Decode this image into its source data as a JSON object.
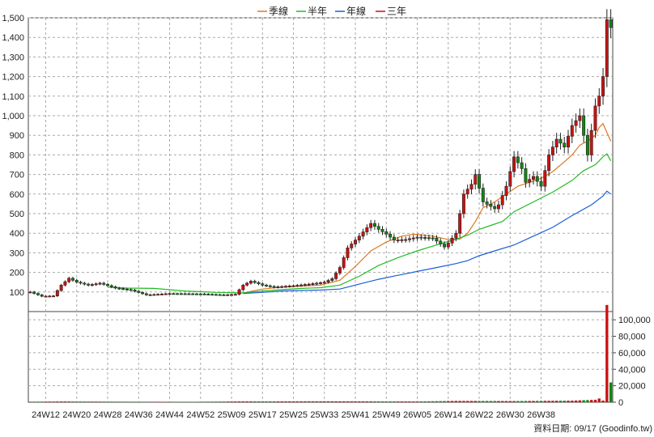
{
  "chart_data": {
    "type": "candlestick",
    "legend": {
      "position": "top-center",
      "items": [
        {
          "label": "季線",
          "color": "#e07820"
        },
        {
          "label": "半年",
          "color": "#22bb22"
        },
        {
          "label": "年線",
          "color": "#1a5fd6"
        },
        {
          "label": "三年",
          "color": "#cc1111"
        }
      ]
    },
    "price_axis": {
      "ylim": [
        0,
        1500
      ],
      "ticks": [
        100,
        200,
        300,
        400,
        500,
        600,
        700,
        800,
        900,
        1000,
        1100,
        1200,
        1300,
        1400,
        1500
      ],
      "tick_labels": [
        "100",
        "200",
        "300",
        "400",
        "500",
        "600",
        "700",
        "800",
        "900",
        "1,000",
        "1,100",
        "1,200",
        "1,300",
        "1,400",
        "1,500"
      ],
      "grid": true
    },
    "volume_axis": {
      "ylim": [
        0,
        110000
      ],
      "ticks": [
        0,
        20000,
        40000,
        60000,
        80000,
        100000
      ],
      "tick_labels": [
        "0",
        "20,000",
        "40,000",
        "60,000",
        "80,000",
        "100,000"
      ],
      "grid": true
    },
    "x_labels": [
      "24W12",
      "24W20",
      "24W28",
      "24W36",
      "24W44",
      "24W52",
      "25W09",
      "25W17",
      "25W25",
      "25W33",
      "25W41",
      "25W49",
      "26W05",
      "26W14",
      "26W22",
      "26W30",
      "26W38"
    ],
    "x_label_every": 8,
    "price_anchors": [
      [
        0,
        100
      ],
      [
        3,
        78
      ],
      [
        6,
        80
      ],
      [
        8,
        135
      ],
      [
        10,
        170
      ],
      [
        12,
        150
      ],
      [
        15,
        135
      ],
      [
        18,
        145
      ],
      [
        22,
        120
      ],
      [
        26,
        110
      ],
      [
        30,
        85
      ],
      [
        36,
        92
      ],
      [
        44,
        90
      ],
      [
        50,
        85
      ],
      [
        53,
        88
      ],
      [
        55,
        135
      ],
      [
        57,
        155
      ],
      [
        60,
        135
      ],
      [
        63,
        125
      ],
      [
        68,
        132
      ],
      [
        72,
        140
      ],
      [
        76,
        150
      ],
      [
        78,
        168
      ],
      [
        80,
        225
      ],
      [
        82,
        325
      ],
      [
        85,
        385
      ],
      [
        88,
        450
      ],
      [
        90,
        420
      ],
      [
        92,
        395
      ],
      [
        94,
        365
      ],
      [
        97,
        368
      ],
      [
        100,
        380
      ],
      [
        104,
        375
      ],
      [
        107,
        330
      ],
      [
        108,
        350
      ],
      [
        110,
        400
      ],
      [
        112,
        600
      ],
      [
        114,
        650
      ],
      [
        115,
        700
      ],
      [
        117,
        560
      ],
      [
        120,
        525
      ],
      [
        121,
        545
      ],
      [
        123,
        640
      ],
      [
        125,
        790
      ],
      [
        127,
        730
      ],
      [
        128,
        660
      ],
      [
        130,
        690
      ],
      [
        132,
        640
      ],
      [
        134,
        800
      ],
      [
        136,
        880
      ],
      [
        138,
        840
      ],
      [
        140,
        950
      ],
      [
        142,
        1000
      ],
      [
        144,
        800
      ],
      [
        146,
        1050
      ],
      [
        147,
        1100
      ],
      [
        148,
        1200
      ],
      [
        149,
        1490
      ],
      [
        150,
        1450
      ]
    ],
    "volume_anchors": [
      [
        0,
        600
      ],
      [
        8,
        900
      ],
      [
        20,
        700
      ],
      [
        40,
        400
      ],
      [
        55,
        1000
      ],
      [
        80,
        1100
      ],
      [
        100,
        900
      ],
      [
        110,
        1600
      ],
      [
        125,
        1400
      ],
      [
        140,
        1900
      ],
      [
        146,
        3000
      ],
      [
        147,
        4500
      ],
      [
        148,
        2000
      ],
      [
        149,
        118000
      ],
      [
        150,
        24000
      ]
    ],
    "ma_lines": [
      {
        "name": "季線",
        "color": "#e07820",
        "points": [
          [
            55,
            95
          ],
          [
            60,
            115
          ],
          [
            65,
            125
          ],
          [
            70,
            130
          ],
          [
            75,
            135
          ],
          [
            80,
            160
          ],
          [
            84,
            230
          ],
          [
            88,
            310
          ],
          [
            92,
            355
          ],
          [
            96,
            385
          ],
          [
            99,
            395
          ],
          [
            104,
            385
          ],
          [
            108,
            368
          ],
          [
            111,
            370
          ],
          [
            113,
            400
          ],
          [
            115,
            460
          ],
          [
            117,
            530
          ],
          [
            120,
            560
          ],
          [
            123,
            600
          ],
          [
            126,
            640
          ],
          [
            129,
            660
          ],
          [
            132,
            680
          ],
          [
            135,
            715
          ],
          [
            138,
            765
          ],
          [
            140,
            800
          ],
          [
            142,
            850
          ],
          [
            144,
            870
          ],
          [
            146,
            900
          ],
          [
            147,
            940
          ],
          [
            148,
            960
          ],
          [
            150,
            870
          ]
        ]
      },
      {
        "name": "半年",
        "color": "#22bb22",
        "points": [
          [
            20,
            125
          ],
          [
            25,
            120
          ],
          [
            32,
            118
          ],
          [
            40,
            105
          ],
          [
            48,
            98
          ],
          [
            55,
            95
          ],
          [
            60,
            105
          ],
          [
            65,
            112
          ],
          [
            70,
            118
          ],
          [
            75,
            122
          ],
          [
            80,
            135
          ],
          [
            85,
            180
          ],
          [
            90,
            235
          ],
          [
            95,
            275
          ],
          [
            100,
            310
          ],
          [
            105,
            340
          ],
          [
            110,
            370
          ],
          [
            113,
            390
          ],
          [
            116,
            420
          ],
          [
            119,
            440
          ],
          [
            122,
            460
          ],
          [
            125,
            510
          ],
          [
            130,
            560
          ],
          [
            135,
            610
          ],
          [
            140,
            670
          ],
          [
            143,
            720
          ],
          [
            146,
            750
          ],
          [
            148,
            790
          ],
          [
            149,
            805
          ],
          [
            150,
            770
          ]
        ]
      },
      {
        "name": "年線",
        "color": "#1a5fd6",
        "points": [
          [
            55,
            92
          ],
          [
            60,
            98
          ],
          [
            65,
            105
          ],
          [
            70,
            108
          ],
          [
            75,
            110
          ],
          [
            80,
            115
          ],
          [
            85,
            140
          ],
          [
            90,
            165
          ],
          [
            95,
            185
          ],
          [
            100,
            205
          ],
          [
            105,
            225
          ],
          [
            110,
            245
          ],
          [
            113,
            260
          ],
          [
            116,
            285
          ],
          [
            120,
            310
          ],
          [
            125,
            340
          ],
          [
            130,
            385
          ],
          [
            135,
            430
          ],
          [
            140,
            490
          ],
          [
            145,
            545
          ],
          [
            148,
            590
          ],
          [
            149,
            615
          ],
          [
            150,
            600
          ]
        ]
      }
    ],
    "footer_note": "資料日期: 09/17 (Goodinfo.tw)"
  }
}
